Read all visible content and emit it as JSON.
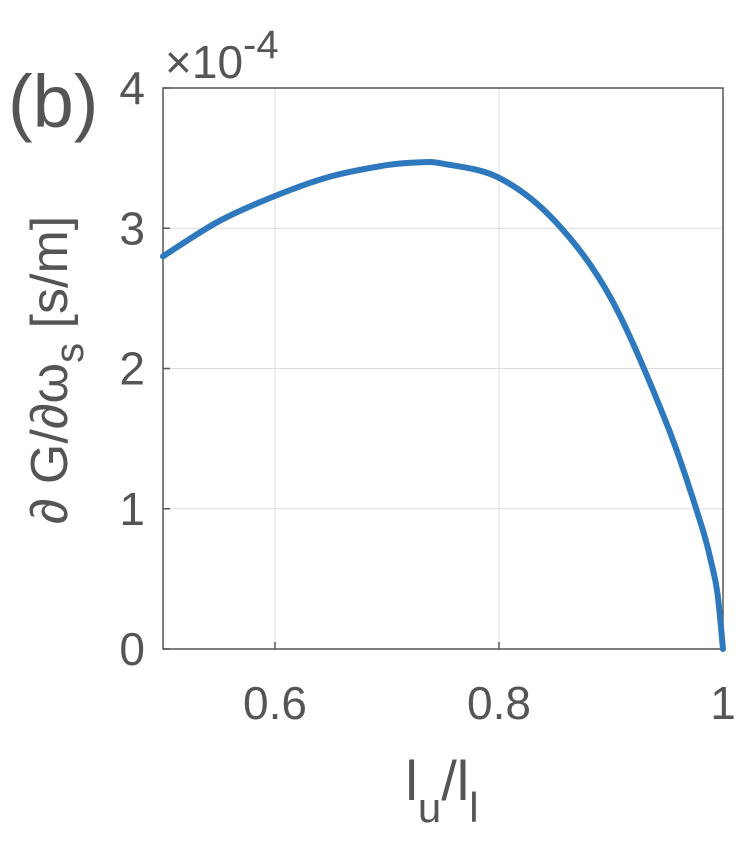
{
  "panel_label": "(b)",
  "chart_data": {
    "type": "line",
    "title": "",
    "xlabel": {
      "main": "l",
      "sub": "u",
      "sep": "/",
      "main2": "l",
      "sub2": "l"
    },
    "ylabel": {
      "prefix": "∂ G/∂ω",
      "sub": "s",
      "unit": " [s/m]"
    },
    "exponent": {
      "base": "×10",
      "power": "-4"
    },
    "xlim": [
      0.5,
      1.0
    ],
    "ylim": [
      0,
      4
    ],
    "xticks": [
      0.6,
      0.8,
      1.0
    ],
    "xtick_labels": [
      "0.6",
      "0.8",
      "1"
    ],
    "yticks": [
      0,
      1,
      2,
      3,
      4
    ],
    "ytick_labels": [
      "0",
      "1",
      "2",
      "3",
      "4"
    ],
    "grid": true,
    "line_color": "#2e78bd",
    "axis_color": "#555555",
    "grid_color": "#dcdcdc",
    "series": [
      {
        "x": [
          0.5,
          0.55,
          0.6,
          0.65,
          0.7,
          0.73,
          0.75,
          0.8,
          0.85,
          0.9,
          0.95,
          0.98,
          0.99,
          0.995,
          1.0
        ],
        "values": [
          2.8,
          3.05,
          3.23,
          3.37,
          3.45,
          3.47,
          3.46,
          3.36,
          3.05,
          2.5,
          1.6,
          0.9,
          0.6,
          0.4,
          0.0
        ]
      }
    ]
  }
}
